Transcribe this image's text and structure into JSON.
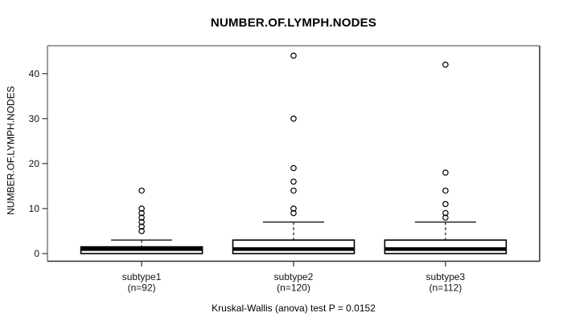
{
  "chart_data": {
    "type": "boxplot",
    "title": "NUMBER.OF.LYMPH.NODES",
    "ylabel": "NUMBER.OF.LYMPH.NODES",
    "xlabel": "",
    "annotation": "Kruskal-Wallis (anova) test P = 0.0152",
    "p_value": 0.0152,
    "test": "Kruskal-Wallis (anova)",
    "yticks": [
      0,
      10,
      20,
      30,
      40
    ],
    "ylim": [
      -1.7,
      46.2
    ],
    "xlim": [
      0.38,
      3.62
    ],
    "grid": false,
    "legend": false,
    "groups": [
      {
        "label": "subtype1",
        "sublabel": "(n=92)",
        "n": 92,
        "position": 1,
        "q1": 0,
        "median": 1,
        "q3": 1.5,
        "whisker_low": 0,
        "whisker_high": 3,
        "outliers": [
          5,
          6,
          7,
          8,
          9,
          10,
          14
        ]
      },
      {
        "label": "subtype2",
        "sublabel": "(n=120)",
        "n": 120,
        "position": 2,
        "q1": 0,
        "median": 1,
        "q3": 3,
        "whisker_low": 0,
        "whisker_high": 7,
        "outliers": [
          9,
          10,
          14,
          16,
          19,
          30,
          44
        ]
      },
      {
        "label": "subtype3",
        "sublabel": "(n=112)",
        "n": 112,
        "position": 3,
        "q1": 0,
        "median": 1,
        "q3": 3,
        "whisker_low": 0,
        "whisker_high": 7,
        "outliers": [
          8,
          9,
          11,
          14,
          18,
          42
        ]
      }
    ]
  },
  "colors": {
    "background": "#ffffff",
    "box_stroke": "#000000",
    "box_fill": "#ffffff",
    "frame_light": "#7f7f7f",
    "frame_dark": "#2b2b2b",
    "tick": "#333333",
    "text": "#111111"
  }
}
